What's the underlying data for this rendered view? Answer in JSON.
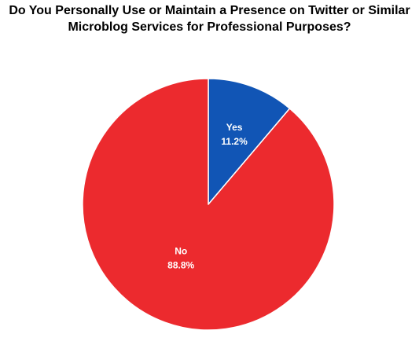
{
  "chart_data": {
    "type": "pie",
    "title": "Do You Personally Use or Maintain a Presence on Twitter or Similar Microblog Services for Professional Purposes?",
    "title_lines": [
      "Do You Personally Use or Maintain a Presence on Twitter or Similar",
      "Microblog Services for Professional Purposes?"
    ],
    "categories": [
      "Yes",
      "No"
    ],
    "values": [
      11.2,
      88.8
    ],
    "value_labels": [
      "11.2%",
      "88.8%"
    ],
    "colors": [
      "#1155b5",
      "#ec2a2e"
    ],
    "legend": "none",
    "start_angle": "12 o'clock",
    "direction": "clockwise"
  }
}
